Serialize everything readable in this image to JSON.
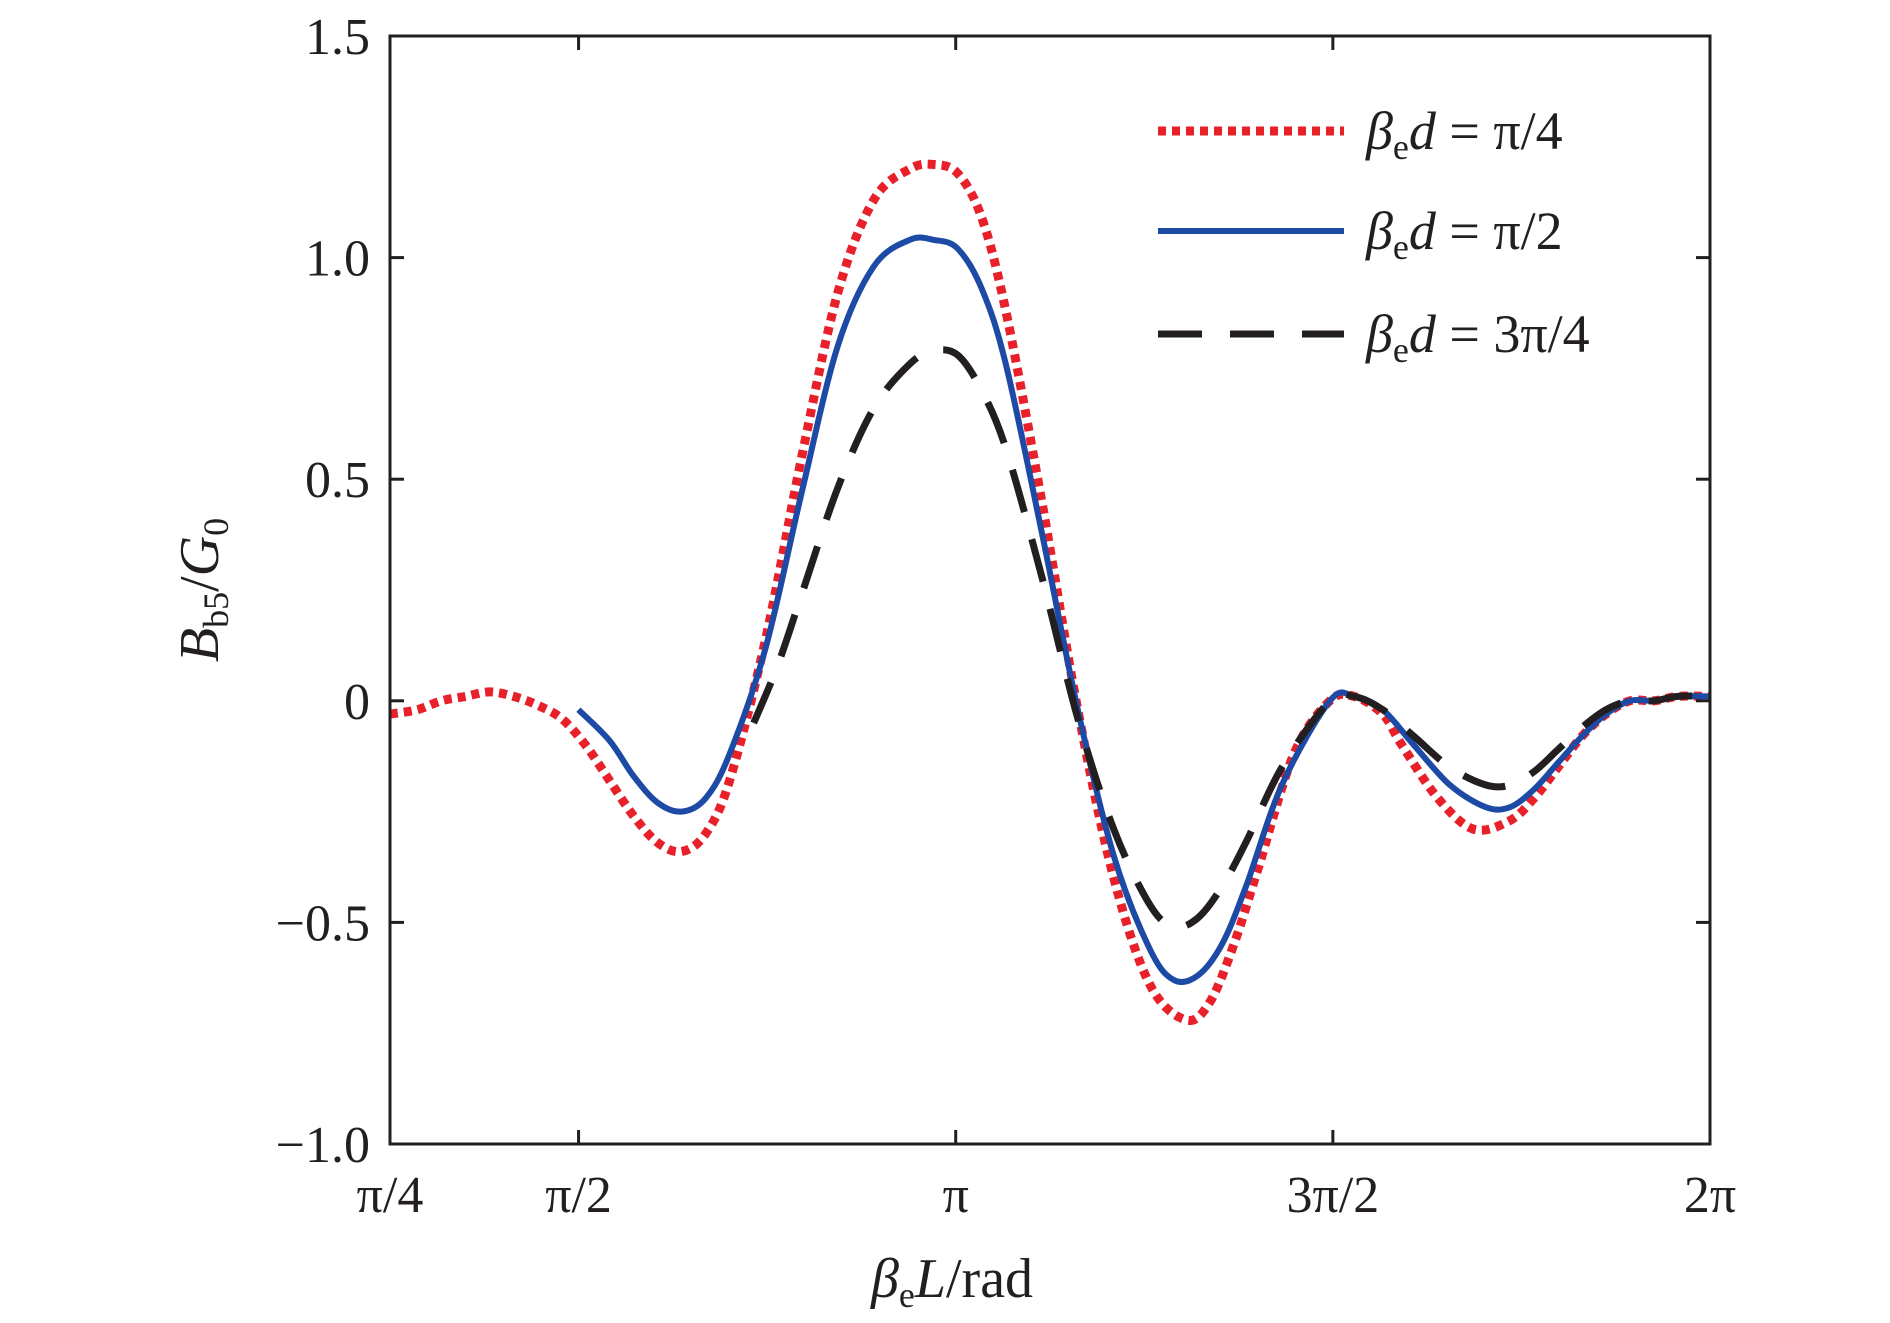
{
  "chart_data": {
    "type": "line",
    "xlabel": "βeL/rad",
    "xlabel_parts": {
      "beta": "β",
      "beta_sub": "e",
      "var": "L",
      "unit": "/rad"
    },
    "ylabel": "Bb5/G0",
    "ylabel_parts": {
      "var": "B",
      "var_sub": "b5",
      "slash": "/",
      "var2": "G",
      "var2_sub": "0"
    },
    "xlim": [
      0.7853981634,
      6.2831853072
    ],
    "ylim": [
      -1.0,
      1.5
    ],
    "x_ticks": [
      {
        "value": 0.7853981634,
        "label": "π/4"
      },
      {
        "value": 1.5707963268,
        "label": "π/2"
      },
      {
        "value": 3.1415926536,
        "label": "π"
      },
      {
        "value": 4.7123889804,
        "label": "3π/2"
      },
      {
        "value": 6.2831853072,
        "label": "2π"
      }
    ],
    "y_ticks": [
      {
        "value": 1.5,
        "label": "1.5"
      },
      {
        "value": 1.0,
        "label": "1.0"
      },
      {
        "value": 0.5,
        "label": "0.5"
      },
      {
        "value": 0.0,
        "label": "0"
      },
      {
        "value": -0.5,
        "label": "−0.5"
      },
      {
        "value": -1.0,
        "label": "−1.0"
      }
    ],
    "grid": false,
    "legend_position": "top-right",
    "series": [
      {
        "name": "βed = π/4",
        "label_parts": {
          "beta": "β",
          "sub": "e",
          "var": "d",
          "rest": " = π/4"
        },
        "color": "#e8202a",
        "style": "dotted",
        "x": [
          0.785,
          0.9,
          1.0,
          1.1,
          1.2,
          1.3,
          1.4,
          1.5,
          1.6,
          1.7,
          1.8,
          1.9,
          2.0,
          2.1,
          2.2,
          2.35,
          2.5,
          2.65,
          2.8,
          2.95,
          3.05,
          3.15,
          3.25,
          3.35,
          3.5,
          3.65,
          3.8,
          3.95,
          4.1,
          4.2,
          4.3,
          4.4,
          4.55,
          4.7,
          4.8,
          4.92,
          5.0,
          5.15,
          5.3,
          5.45,
          5.55,
          5.65,
          5.75,
          5.85,
          5.95,
          6.05,
          6.15,
          6.283
        ],
        "y": [
          -0.03,
          -0.02,
          0.0,
          0.01,
          0.02,
          0.01,
          -0.01,
          -0.04,
          -0.1,
          -0.18,
          -0.26,
          -0.32,
          -0.34,
          -0.3,
          -0.18,
          0.14,
          0.55,
          0.92,
          1.13,
          1.2,
          1.21,
          1.19,
          1.09,
          0.88,
          0.45,
          -0.02,
          -0.4,
          -0.64,
          -0.72,
          -0.68,
          -0.55,
          -0.38,
          -0.12,
          0.0,
          0.01,
          -0.03,
          -0.1,
          -0.22,
          -0.29,
          -0.27,
          -0.22,
          -0.15,
          -0.08,
          -0.03,
          0.0,
          0.0,
          0.01,
          0.01
        ]
      },
      {
        "name": "βed = π/2",
        "label_parts": {
          "beta": "β",
          "sub": "e",
          "var": "d",
          "rest": " = π/2"
        },
        "color": "#1c4aa5",
        "style": "solid",
        "x": [
          1.57,
          1.7,
          1.8,
          1.9,
          2.0,
          2.1,
          2.2,
          2.35,
          2.5,
          2.65,
          2.8,
          2.95,
          3.05,
          3.15,
          3.25,
          3.35,
          3.5,
          3.65,
          3.8,
          3.95,
          4.05,
          4.15,
          4.25,
          4.35,
          4.5,
          4.7,
          4.8,
          4.92,
          5.05,
          5.2,
          5.35,
          5.45,
          5.55,
          5.65,
          5.75,
          5.85,
          5.95,
          6.05,
          6.15,
          6.283
        ],
        "y": [
          -0.02,
          -0.09,
          -0.17,
          -0.23,
          -0.25,
          -0.22,
          -0.12,
          0.12,
          0.47,
          0.8,
          0.98,
          1.04,
          1.04,
          1.02,
          0.93,
          0.76,
          0.38,
          -0.02,
          -0.35,
          -0.56,
          -0.63,
          -0.62,
          -0.55,
          -0.42,
          -0.19,
          0.0,
          0.01,
          -0.02,
          -0.1,
          -0.19,
          -0.24,
          -0.24,
          -0.2,
          -0.14,
          -0.08,
          -0.03,
          0.0,
          0.0,
          0.01,
          0.01
        ]
      },
      {
        "name": "βed = 3π/4",
        "label_parts": {
          "beta": "β",
          "sub": "e",
          "var": "d",
          "rest": " = 3π/4"
        },
        "color": "#231f20",
        "style": "dashed",
        "x": [
          2.3,
          2.4,
          2.5,
          2.65,
          2.8,
          2.95,
          3.05,
          3.15,
          3.25,
          3.35,
          3.5,
          3.65,
          3.8,
          3.95,
          4.05,
          4.15,
          4.25,
          4.35,
          4.5,
          4.7,
          4.8,
          4.92,
          5.05,
          5.2,
          5.35,
          5.45,
          5.55,
          5.65,
          5.75,
          5.85,
          5.95,
          6.05,
          6.15,
          6.283
        ],
        "y": [
          -0.05,
          0.08,
          0.24,
          0.48,
          0.66,
          0.76,
          0.79,
          0.78,
          0.7,
          0.57,
          0.28,
          -0.04,
          -0.29,
          -0.46,
          -0.51,
          -0.49,
          -0.42,
          -0.32,
          -0.15,
          0.0,
          0.01,
          -0.02,
          -0.08,
          -0.15,
          -0.19,
          -0.19,
          -0.16,
          -0.11,
          -0.06,
          -0.02,
          0.0,
          0.0,
          0.01,
          0.01
        ]
      }
    ]
  }
}
